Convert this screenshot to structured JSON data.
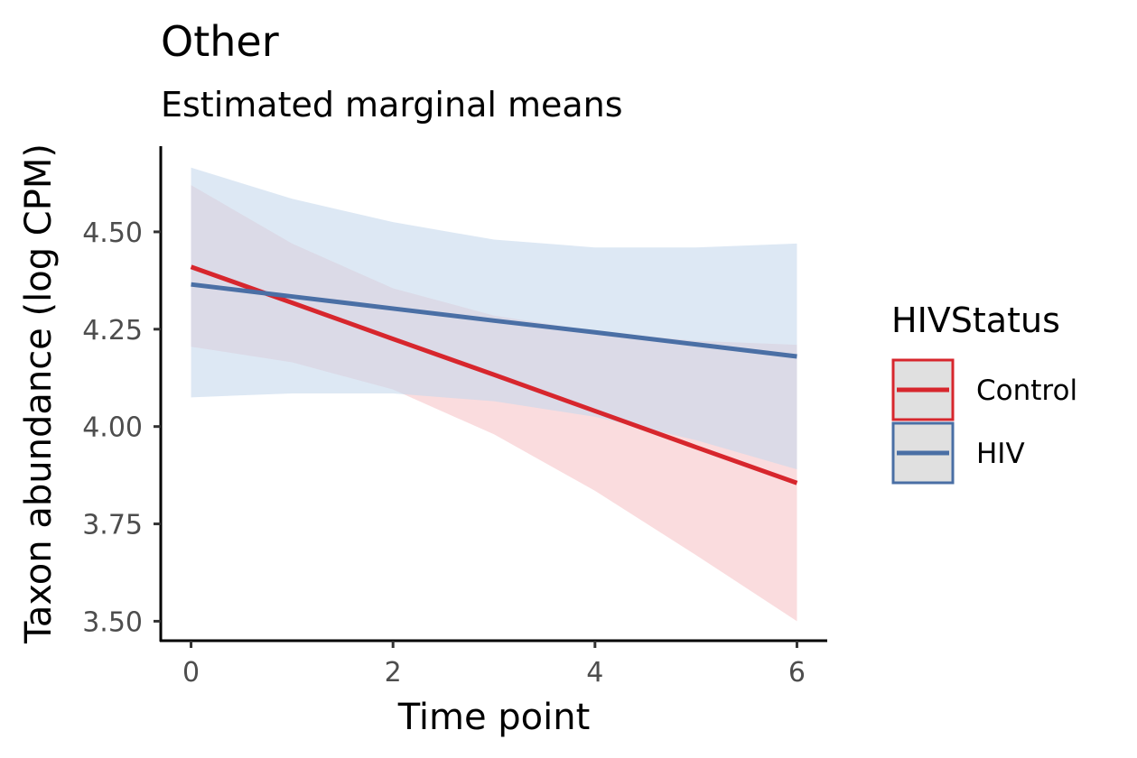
{
  "chart_data": {
    "type": "line",
    "title": "Other",
    "subtitle": "Estimated marginal means",
    "xlabel": "Time point",
    "ylabel": "Taxon abundance (log CPM)",
    "xlim": [
      -0.3,
      6.3
    ],
    "ylim": [
      3.45,
      4.72
    ],
    "x_ticks": [
      0,
      2,
      4,
      6
    ],
    "x_tick_labels": [
      "0",
      "2",
      "4",
      "6"
    ],
    "y_ticks": [
      3.5,
      3.75,
      4.0,
      4.25,
      4.5
    ],
    "y_tick_labels": [
      "3.50",
      "3.75",
      "4.00",
      "4.25",
      "4.50"
    ],
    "grid": false,
    "legend": {
      "title": "HIVStatus",
      "position": "right"
    },
    "series": [
      {
        "name": "Control",
        "color": "#d7262d",
        "fill_color": "#f7c5c8",
        "x": [
          0,
          1,
          2,
          3,
          4,
          5,
          6
        ],
        "y": [
          4.41,
          4.318,
          4.225,
          4.133,
          4.04,
          3.947,
          3.855
        ],
        "lower": [
          4.205,
          4.165,
          4.095,
          3.98,
          3.835,
          3.67,
          3.5
        ],
        "upper": [
          4.62,
          4.47,
          4.355,
          4.285,
          4.245,
          4.22,
          4.21
        ]
      },
      {
        "name": "HIV",
        "color": "#4a6fa5",
        "fill_color": "#c6d9ec",
        "x": [
          0,
          1,
          2,
          3,
          4,
          5,
          6
        ],
        "y": [
          4.365,
          4.334,
          4.303,
          4.272,
          4.242,
          4.211,
          4.18
        ],
        "lower": [
          4.075,
          4.085,
          4.085,
          4.065,
          4.025,
          3.965,
          3.89
        ],
        "upper": [
          4.665,
          4.585,
          4.525,
          4.48,
          4.46,
          4.46,
          4.47
        ]
      }
    ]
  }
}
